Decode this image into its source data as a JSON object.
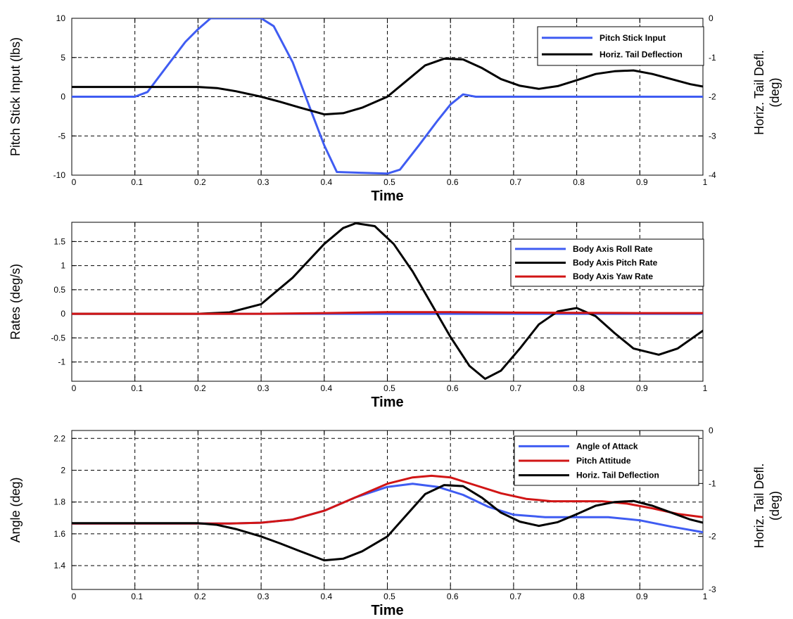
{
  "colors": {
    "blue": "#3f5cf2",
    "black": "#000000",
    "red": "#d11515",
    "grid": "#000000",
    "frame": "#000000"
  },
  "chart_data": [
    {
      "type": "line",
      "xlabel": "Time",
      "ylabel": "Pitch Stick Input (lbs)",
      "y2label": [
        "Horiz. Tail Defl.",
        "(deg)"
      ],
      "xlim": [
        0,
        1
      ],
      "ylim": [
        -10,
        10
      ],
      "y2lim": [
        -4,
        0
      ],
      "xticks": [
        0,
        0.1,
        0.2,
        0.3,
        0.4,
        0.5,
        0.6,
        0.7,
        0.8,
        0.9,
        1
      ],
      "xtick_labels": [
        "0",
        "0.1",
        "0.2",
        "0.3",
        "0.4",
        "0.5",
        "0.6",
        "0.7",
        "0.8",
        "0.9",
        "1"
      ],
      "yticks": [
        -10,
        -5,
        0,
        5,
        10
      ],
      "ytick_labels": [
        "-10",
        "-5",
        "0",
        "5",
        "10"
      ],
      "y2ticks": [
        -4,
        -3,
        -2,
        -1,
        0
      ],
      "y2tick_labels": [
        "-4",
        "-3",
        "-2",
        "-1",
        "0"
      ],
      "grid": true,
      "legend_position": "top-right",
      "series": [
        {
          "name": "Pitch Stick Input",
          "color": "blue",
          "axis": "left",
          "x": [
            0,
            0.1,
            0.12,
            0.15,
            0.18,
            0.2,
            0.22,
            0.3,
            0.32,
            0.35,
            0.38,
            0.4,
            0.42,
            0.5,
            0.52,
            0.55,
            0.58,
            0.6,
            0.62,
            0.64,
            1.0
          ],
          "y": [
            0,
            0,
            0.6,
            3.8,
            7.0,
            8.6,
            10,
            10,
            9.0,
            4.4,
            -2.0,
            -6.2,
            -9.6,
            -9.8,
            -9.3,
            -6.2,
            -3.0,
            -1.0,
            0.3,
            0,
            0
          ]
        },
        {
          "name": "Horiz. Tail Deflection",
          "color": "black",
          "axis": "right",
          "x": [
            0,
            0.1,
            0.2,
            0.23,
            0.26,
            0.3,
            0.33,
            0.36,
            0.4,
            0.43,
            0.46,
            0.5,
            0.53,
            0.56,
            0.59,
            0.62,
            0.65,
            0.68,
            0.71,
            0.74,
            0.77,
            0.8,
            0.83,
            0.86,
            0.89,
            0.92,
            0.95,
            0.98,
            1.0
          ],
          "y": [
            -1.75,
            -1.75,
            -1.75,
            -1.78,
            -1.86,
            -2.0,
            -2.13,
            -2.27,
            -2.45,
            -2.42,
            -2.28,
            -2.0,
            -1.6,
            -1.2,
            -1.03,
            -1.05,
            -1.27,
            -1.55,
            -1.72,
            -1.8,
            -1.73,
            -1.58,
            -1.42,
            -1.35,
            -1.33,
            -1.42,
            -1.55,
            -1.68,
            -1.74
          ]
        }
      ]
    },
    {
      "type": "line",
      "xlabel": "Time",
      "ylabel": "Rates (deg/s)",
      "xlim": [
        0,
        1
      ],
      "ylim": [
        -1.4,
        1.9
      ],
      "xticks": [
        0,
        0.1,
        0.2,
        0.3,
        0.4,
        0.5,
        0.6,
        0.7,
        0.8,
        0.9,
        1
      ],
      "xtick_labels": [
        "0",
        "0.1",
        "0.2",
        "0.3",
        "0.4",
        "0.5",
        "0.6",
        "0.7",
        "0.8",
        "0.9",
        "1"
      ],
      "yticks": [
        -1,
        -0.5,
        0,
        0.5,
        1,
        1.5
      ],
      "ytick_labels": [
        "-1",
        "-0.5",
        "0",
        "0.5",
        "1",
        "1.5"
      ],
      "grid": true,
      "legend_position": "top-right",
      "series": [
        {
          "name": "Body Axis Roll Rate",
          "color": "blue",
          "x": [
            0,
            0.3,
            0.4,
            0.5,
            0.6,
            0.7,
            1.0
          ],
          "y": [
            0,
            0,
            0,
            0,
            0,
            0,
            0
          ]
        },
        {
          "name": "Body Axis Pitch Rate",
          "color": "black",
          "x": [
            0,
            0.2,
            0.25,
            0.3,
            0.35,
            0.4,
            0.43,
            0.45,
            0.48,
            0.51,
            0.54,
            0.57,
            0.6,
            0.63,
            0.655,
            0.68,
            0.71,
            0.74,
            0.77,
            0.8,
            0.83,
            0.86,
            0.89,
            0.93,
            0.96,
            1.0
          ],
          "y": [
            0,
            0,
            0.03,
            0.2,
            0.75,
            1.45,
            1.78,
            1.88,
            1.82,
            1.45,
            0.88,
            0.2,
            -0.48,
            -1.08,
            -1.35,
            -1.18,
            -0.72,
            -0.22,
            0.05,
            0.12,
            -0.05,
            -0.4,
            -0.72,
            -0.85,
            -0.72,
            -0.35
          ]
        },
        {
          "name": "Body Axis Yaw Rate",
          "color": "red",
          "x": [
            0,
            0.3,
            0.4,
            0.5,
            0.6,
            0.7,
            0.8,
            0.9,
            1.0
          ],
          "y": [
            0,
            0,
            0.015,
            0.035,
            0.035,
            0.025,
            0.02,
            0.015,
            0.015
          ]
        }
      ]
    },
    {
      "type": "line",
      "xlabel": "Time",
      "ylabel": "Angle (deg)",
      "y2label": [
        "Horiz. Tail Defl.",
        "(deg)"
      ],
      "xlim": [
        0,
        1
      ],
      "ylim": [
        1.25,
        2.25
      ],
      "y2lim": [
        -3,
        0
      ],
      "xticks": [
        0,
        0.1,
        0.2,
        0.3,
        0.4,
        0.5,
        0.6,
        0.7,
        0.8,
        0.9,
        1
      ],
      "xtick_labels": [
        "0",
        "0.1",
        "0.2",
        "0.3",
        "0.4",
        "0.5",
        "0.6",
        "0.7",
        "0.8",
        "0.9",
        "1"
      ],
      "yticks": [
        1.4,
        1.6,
        1.8,
        2,
        2.2
      ],
      "ytick_labels": [
        "1.4",
        "1.6",
        "1.8",
        "2",
        "2.2"
      ],
      "y2ticks": [
        -3,
        -2,
        -1,
        0
      ],
      "y2tick_labels": [
        "-3",
        "-2",
        "-1",
        "0"
      ],
      "grid": true,
      "legend_position": "top-right",
      "series": [
        {
          "name": "Angle of Attack",
          "color": "blue",
          "axis": "left",
          "x": [
            0,
            0.25,
            0.3,
            0.35,
            0.4,
            0.45,
            0.5,
            0.54,
            0.58,
            0.62,
            0.66,
            0.7,
            0.75,
            0.8,
            0.85,
            0.9,
            0.95,
            1.0
          ],
          "y": [
            1.665,
            1.665,
            1.67,
            1.69,
            1.745,
            1.83,
            1.895,
            1.915,
            1.895,
            1.845,
            1.77,
            1.72,
            1.705,
            1.705,
            1.705,
            1.685,
            1.645,
            1.61
          ]
        },
        {
          "name": "Pitch Attitude",
          "color": "red",
          "axis": "left",
          "x": [
            0,
            0.25,
            0.3,
            0.35,
            0.4,
            0.45,
            0.5,
            0.54,
            0.57,
            0.6,
            0.64,
            0.68,
            0.72,
            0.76,
            0.8,
            0.84,
            0.88,
            0.92,
            0.96,
            1.0
          ],
          "y": [
            1.665,
            1.665,
            1.67,
            1.69,
            1.745,
            1.83,
            1.915,
            1.955,
            1.965,
            1.955,
            1.905,
            1.855,
            1.82,
            1.805,
            1.805,
            1.805,
            1.79,
            1.76,
            1.725,
            1.705
          ]
        },
        {
          "name": "Horiz. Tail Deflection",
          "color": "black",
          "axis": "right",
          "x": [
            0,
            0.1,
            0.2,
            0.23,
            0.26,
            0.3,
            0.33,
            0.36,
            0.4,
            0.43,
            0.46,
            0.5,
            0.53,
            0.56,
            0.59,
            0.62,
            0.65,
            0.68,
            0.71,
            0.74,
            0.77,
            0.8,
            0.83,
            0.86,
            0.89,
            0.92,
            0.95,
            0.98,
            1.0
          ],
          "y": [
            -1.75,
            -1.75,
            -1.75,
            -1.78,
            -1.86,
            -2.0,
            -2.13,
            -2.27,
            -2.45,
            -2.42,
            -2.28,
            -2.0,
            -1.6,
            -1.2,
            -1.03,
            -1.05,
            -1.27,
            -1.55,
            -1.72,
            -1.8,
            -1.73,
            -1.58,
            -1.42,
            -1.35,
            -1.33,
            -1.42,
            -1.55,
            -1.68,
            -1.74
          ]
        }
      ]
    }
  ]
}
